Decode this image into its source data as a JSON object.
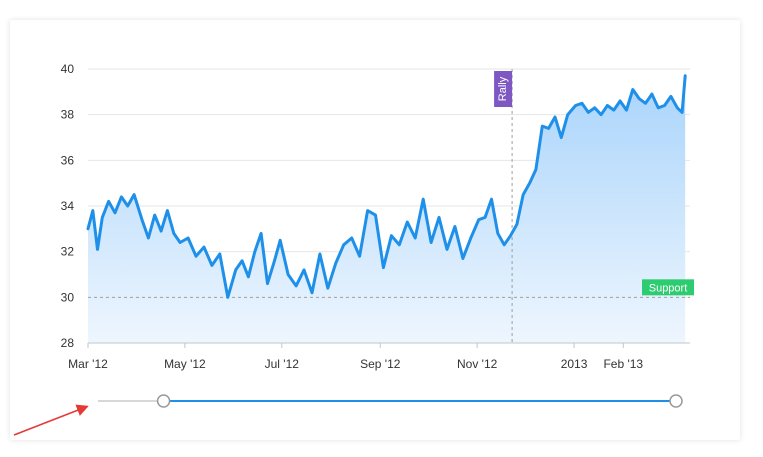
{
  "colors": {
    "line": "#1e90ea",
    "area_top": "#a9d4fb",
    "area_bottom": "#eef6fe",
    "grid": "#e6e6e6",
    "annotation_rally": "#7e57c2",
    "annotation_support": "#2ecc71",
    "slider_track": "#cccccc",
    "slider_selected": "#1e90ea",
    "slider_handle": "#999999",
    "arrow": "#e53935"
  },
  "slider": {
    "start": 0.11,
    "end": 1.0,
    "handle_icon": "circle-handle-icon"
  },
  "chart_data": {
    "type": "area",
    "title": "",
    "xlabel": "",
    "ylabel": "",
    "ylim": [
      28,
      40
    ],
    "yticks": [
      28,
      30,
      32,
      34,
      36,
      38,
      40
    ],
    "x_start": "2012-03-01",
    "x_end": "2013-03-15",
    "xticks": [
      {
        "date": "2012-03-01",
        "label": "Mar '12"
      },
      {
        "date": "2012-05-01",
        "label": "May '12"
      },
      {
        "date": "2012-07-01",
        "label": "Jul '12"
      },
      {
        "date": "2012-09-01",
        "label": "Sep '12"
      },
      {
        "date": "2012-11-01",
        "label": "Nov '12"
      },
      {
        "date": "2013-01-01",
        "label": "2013"
      },
      {
        "date": "2013-02-01",
        "label": "Feb '13"
      }
    ],
    "grid": true,
    "series": [
      {
        "x": [
          "2012-03-01",
          "2012-03-04",
          "2012-03-07",
          "2012-03-10",
          "2012-03-14",
          "2012-03-18",
          "2012-03-22",
          "2012-03-26",
          "2012-03-30",
          "2012-04-04",
          "2012-04-08",
          "2012-04-12",
          "2012-04-16",
          "2012-04-20",
          "2012-04-24",
          "2012-04-28",
          "2012-05-03",
          "2012-05-08",
          "2012-05-13",
          "2012-05-18",
          "2012-05-23",
          "2012-05-28",
          "2012-06-02",
          "2012-06-06",
          "2012-06-10",
          "2012-06-14",
          "2012-06-18",
          "2012-06-22",
          "2012-06-26",
          "2012-06-30",
          "2012-07-05",
          "2012-07-10",
          "2012-07-15",
          "2012-07-20",
          "2012-07-25",
          "2012-07-30",
          "2012-08-04",
          "2012-08-09",
          "2012-08-14",
          "2012-08-19",
          "2012-08-24",
          "2012-08-29",
          "2012-09-03",
          "2012-09-08",
          "2012-09-13",
          "2012-09-18",
          "2012-09-23",
          "2012-09-28",
          "2012-10-03",
          "2012-10-08",
          "2012-10-13",
          "2012-10-18",
          "2012-10-23",
          "2012-10-28",
          "2012-11-02",
          "2012-11-06",
          "2012-11-10",
          "2012-11-14",
          "2012-11-18",
          "2012-11-22",
          "2012-11-26",
          "2012-11-30",
          "2012-12-04",
          "2012-12-08",
          "2012-12-12",
          "2012-12-16",
          "2012-12-20",
          "2012-12-24",
          "2012-12-28",
          "2013-01-02",
          "2013-01-06",
          "2013-01-10",
          "2013-01-14",
          "2013-01-18",
          "2013-01-22",
          "2013-01-26",
          "2013-01-30",
          "2013-02-03",
          "2013-02-07",
          "2013-02-11",
          "2013-02-15",
          "2013-02-19",
          "2013-02-23",
          "2013-02-27",
          "2013-03-03",
          "2013-03-07",
          "2013-03-10",
          "2013-03-12"
        ],
        "y": [
          33.0,
          33.8,
          32.1,
          33.5,
          34.2,
          33.7,
          34.4,
          34.0,
          34.5,
          33.4,
          32.6,
          33.6,
          32.9,
          33.8,
          32.8,
          32.4,
          32.6,
          31.8,
          32.2,
          31.4,
          31.9,
          30.0,
          31.2,
          31.6,
          30.9,
          32.0,
          32.8,
          30.6,
          31.5,
          32.5,
          31.0,
          30.5,
          31.2,
          30.2,
          31.9,
          30.4,
          31.5,
          32.3,
          32.6,
          31.8,
          33.8,
          33.6,
          31.3,
          32.7,
          32.3,
          33.3,
          32.6,
          34.3,
          32.4,
          33.5,
          32.1,
          33.1,
          31.7,
          32.6,
          33.4,
          33.5,
          34.3,
          32.8,
          32.3,
          32.7,
          33.2,
          34.5,
          35.0,
          35.6,
          37.5,
          37.4,
          37.9,
          37.0,
          38.0,
          38.4,
          38.5,
          38.1,
          38.3,
          38.0,
          38.4,
          38.2,
          38.6,
          38.2,
          39.1,
          38.7,
          38.5,
          38.9,
          38.3,
          38.4,
          38.8,
          38.3,
          38.1,
          39.7
        ]
      }
    ],
    "annotations": [
      {
        "type": "vertical",
        "x": "2012-11-23",
        "label": "Rally"
      },
      {
        "type": "horizontal",
        "y": 30,
        "label": "Support"
      }
    ]
  }
}
